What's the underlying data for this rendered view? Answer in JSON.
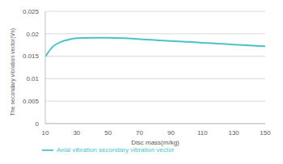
{
  "chart_data": {
    "type": "line",
    "x_label": "Disc mass(m/kg)",
    "y_label": "The secondary vibration vector(Vs)",
    "x": [
      10,
      15,
      20,
      25,
      30,
      40,
      50,
      60,
      70,
      80,
      90,
      100,
      110,
      120,
      130,
      140,
      150
    ],
    "series": [
      {
        "name": "Axial vibration secondary vibration vector",
        "color": "#4bc2c8",
        "values": [
          0.0149,
          0.0172,
          0.0182,
          0.0187,
          0.019,
          0.0191,
          0.0191,
          0.019,
          0.0188,
          0.0186,
          0.0184,
          0.0182,
          0.018,
          0.0178,
          0.0176,
          0.0174,
          0.0172
        ]
      }
    ],
    "xlim": [
      10,
      150
    ],
    "xticks": [
      10,
      30,
      50,
      70,
      90,
      110,
      130,
      150
    ],
    "ylim": [
      0,
      0.025
    ],
    "yticks": [
      0,
      0.005,
      0.01,
      0.015,
      0.02,
      0.025
    ],
    "grid": true,
    "legend": "bottom"
  }
}
